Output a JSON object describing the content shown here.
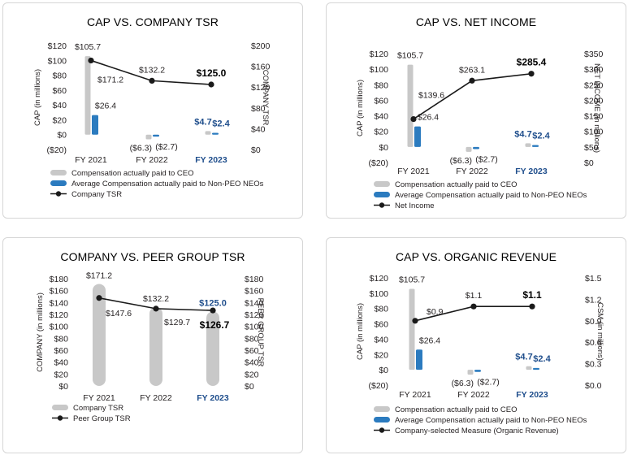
{
  "colors": {
    "ceo": "#c8c8c8",
    "neo": "#2b7bbf",
    "line": "#1a1a1a",
    "highlight": "#1f4e8c"
  },
  "chart_data": [
    {
      "id": "p1",
      "type": "bar+line",
      "title": "CAP VS. COMPANY TSR",
      "categories": [
        "FY 2021",
        "FY 2022",
        "FY 2023"
      ],
      "highlight_category": "FY 2023",
      "ylabel": "CAP (in millions)",
      "y2label": "COMPANY TSR",
      "ylim": [
        -20,
        120
      ],
      "yticks": [
        -20,
        0,
        20,
        40,
        60,
        80,
        100,
        120
      ],
      "ytick_labels": [
        "($20)",
        "$0",
        "$20",
        "$40",
        "$60",
        "$80",
        "$100",
        "$120"
      ],
      "y2lim": [
        0,
        200
      ],
      "y2ticks": [
        0,
        40,
        80,
        120,
        160,
        200
      ],
      "y2tick_labels": [
        "$0",
        "$40",
        "$80",
        "$120",
        "$160",
        "$200"
      ],
      "series": [
        {
          "name": "Compensation actually paid to CEO",
          "kind": "bar",
          "color_key": "ceo",
          "axis": "left",
          "values": [
            105.7,
            -6.3,
            4.7
          ],
          "labels": [
            "$105.7",
            "($6.3)",
            "$4.7"
          ]
        },
        {
          "name": "Average Compensation actually paid to Non-PEO NEOs",
          "kind": "bar",
          "color_key": "neo",
          "axis": "left",
          "values": [
            26.4,
            -2.7,
            2.4
          ],
          "labels": [
            "$26.4",
            "($2.7)",
            "$2.4"
          ]
        },
        {
          "name": "Company TSR",
          "kind": "line",
          "color_key": "line",
          "axis": "right",
          "values": [
            171.2,
            132.2,
            125.0
          ],
          "labels": [
            "$171.2",
            "$132.2",
            "$125.0"
          ]
        }
      ],
      "legend": [
        "Compensation actually paid to CEO",
        "Average Compensation actually paid to Non-PEO NEOs",
        "Company TSR"
      ]
    },
    {
      "id": "p2",
      "type": "bar+line",
      "title": "CAP VS. NET INCOME",
      "categories": [
        "FY 2021",
        "FY 2022",
        "FY 2023"
      ],
      "highlight_category": "FY 2023",
      "ylabel": "CAP (in millions)",
      "y2label": "NET INCOME (in millions)",
      "ylim": [
        -20,
        120
      ],
      "yticks": [
        -20,
        0,
        20,
        40,
        60,
        80,
        100,
        120
      ],
      "ytick_labels": [
        "($20)",
        "$0",
        "$20",
        "$40",
        "$60",
        "$80",
        "$100",
        "$120"
      ],
      "y2lim": [
        0,
        350
      ],
      "y2ticks": [
        0,
        50,
        100,
        150,
        200,
        250,
        300,
        350
      ],
      "y2tick_labels": [
        "$0",
        "$50",
        "$100",
        "$150",
        "$200",
        "$250",
        "$300",
        "$350"
      ],
      "series": [
        {
          "name": "Compensation actually paid to CEO",
          "kind": "bar",
          "color_key": "ceo",
          "axis": "left",
          "values": [
            105.7,
            -6.3,
            4.7
          ],
          "labels": [
            "$105.7",
            "($6.3)",
            "$4.7"
          ]
        },
        {
          "name": "Average Compensation actually paid to Non-PEO NEOs",
          "kind": "bar",
          "color_key": "neo",
          "axis": "left",
          "values": [
            26.4,
            -2.7,
            2.4
          ],
          "labels": [
            "$26.4",
            "($2.7)",
            "$2.4"
          ]
        },
        {
          "name": "Net Income",
          "kind": "line",
          "color_key": "line",
          "axis": "right",
          "values": [
            139.6,
            263.1,
            285.4
          ],
          "labels": [
            "$139.6",
            "$263.1",
            "$285.4"
          ]
        }
      ],
      "legend": [
        "Compensation actually paid to CEO",
        "Average Compensation actually paid to Non-PEO NEOs",
        "Net Income"
      ]
    },
    {
      "id": "p3",
      "type": "bar+line",
      "title": "COMPANY VS. PEER GROUP TSR",
      "categories": [
        "FY 2021",
        "FY 2022",
        "FY 2023"
      ],
      "highlight_category": "FY 2023",
      "ylabel": "COMPANY (in millions)",
      "y2label": "PEER GROUP TSR",
      "ylim": [
        0,
        180
      ],
      "yticks": [
        0,
        20,
        40,
        60,
        80,
        100,
        120,
        140,
        160,
        180
      ],
      "ytick_labels": [
        "$0",
        "$20",
        "$40",
        "$60",
        "$80",
        "$100",
        "$120",
        "$140",
        "$160",
        "$180"
      ],
      "y2lim": [
        0,
        180
      ],
      "y2ticks": [
        0,
        20,
        40,
        60,
        80,
        100,
        120,
        140,
        160,
        180
      ],
      "y2tick_labels": [
        "$0",
        "$20",
        "$40",
        "$60",
        "$80",
        "$100",
        "$120",
        "$140",
        "$160",
        "$180"
      ],
      "series": [
        {
          "name": "Company TSR",
          "kind": "bar",
          "color_key": "ceo",
          "axis": "left",
          "values": [
            171.2,
            132.2,
            125.0
          ],
          "labels": [
            "$171.2",
            "$132.2",
            "$125.0"
          ]
        },
        {
          "name": "Peer Group TSR",
          "kind": "line",
          "color_key": "line",
          "axis": "right",
          "values": [
            147.6,
            129.7,
            126.7
          ],
          "labels": [
            "$147.6",
            "$129.7",
            "$126.7"
          ]
        }
      ],
      "legend": [
        "Company TSR",
        "Peer Group TSR"
      ]
    },
    {
      "id": "p4",
      "type": "bar+line",
      "title": "CAP VS. ORGANIC REVENUE",
      "categories": [
        "FY 2021",
        "FY 2022",
        "FY 2023"
      ],
      "highlight_category": "FY 2023",
      "ylabel": "CAP (in millions)",
      "y2label": "CSM (in millions)",
      "ylim": [
        -20,
        120
      ],
      "yticks": [
        -20,
        0,
        20,
        40,
        60,
        80,
        100,
        120
      ],
      "ytick_labels": [
        "($20)",
        "$0",
        "$20",
        "$40",
        "$60",
        "$80",
        "$100",
        "$120"
      ],
      "y2lim": [
        0,
        1.5
      ],
      "y2ticks": [
        0,
        0.3,
        0.6,
        0.9,
        1.2,
        1.5
      ],
      "y2tick_labels": [
        "$0.0",
        "$0.3",
        "$0.6",
        "$0.9",
        "$1.2",
        "$1.5"
      ],
      "series": [
        {
          "name": "Compensation actually paid to CEO",
          "kind": "bar",
          "color_key": "ceo",
          "axis": "left",
          "values": [
            105.7,
            -6.3,
            4.7
          ],
          "labels": [
            "$105.7",
            "($6.3)",
            "$4.7"
          ]
        },
        {
          "name": "Average Compensation actually paid to Non-PEO NEOs",
          "kind": "bar",
          "color_key": "neo",
          "axis": "left",
          "values": [
            26.4,
            -2.7,
            2.4
          ],
          "labels": [
            "$26.4",
            "($2.7)",
            "$2.4"
          ]
        },
        {
          "name": "Company-selected Measure (Organic Revenue)",
          "kind": "line",
          "color_key": "line",
          "axis": "right",
          "values": [
            0.9,
            1.1,
            1.1
          ],
          "labels": [
            "$0.9",
            "$1.1",
            "$1.1"
          ]
        }
      ],
      "legend": [
        "Compensation actually paid to CEO",
        "Average Compensation actually paid to Non-PEO NEOs",
        "Company-selected Measure (Organic Revenue)"
      ]
    }
  ]
}
